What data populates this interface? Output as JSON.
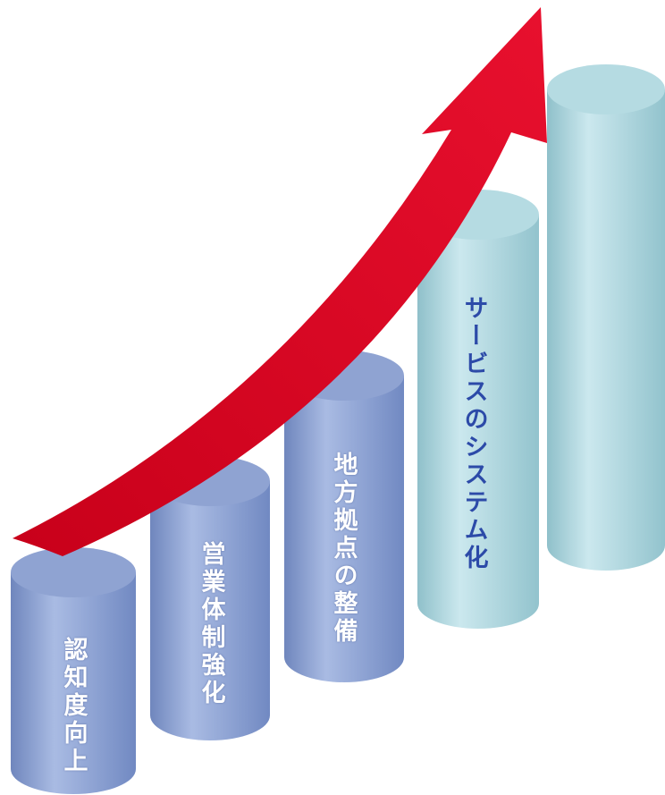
{
  "labels": [
    "認知度向上",
    "営業体制強化",
    "地方拠点の整備",
    "サービスのシステム化"
  ]
}
